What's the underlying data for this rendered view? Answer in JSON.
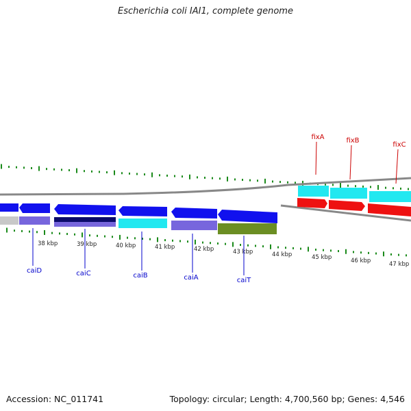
{
  "header": {
    "title": "Escherichia coli IAI1, complete genome"
  },
  "footer": {
    "accession": "Accession: NC_011741",
    "summary": "Topology: circular; Length: 4,700,560 bp; Genes: 4,546"
  },
  "colors": {
    "gene_label_blue": "#0000cc",
    "gene_label_red": "#cc0000",
    "tick_green": "#1a8a1a",
    "gene_blue": "#1111ee",
    "gene_cyan": "#22e8f0",
    "gene_red": "#ee1111",
    "gene_purple": "#7766dd",
    "gene_olive": "#6b8e23",
    "gene_navy": "#0a0a6a"
  },
  "axis": {
    "kbp_labels": [
      "38 kbp",
      "39 kbp",
      "40 kbp",
      "41 kbp",
      "42 kbp",
      "43 kbp",
      "44 kbp",
      "45 kbp",
      "46 kbp",
      "47 kbp"
    ]
  },
  "genes": {
    "bottom": [
      "caiD",
      "caiC",
      "caiB",
      "caiA",
      "caiT"
    ],
    "top": [
      "fixA",
      "fixB",
      "fixC"
    ]
  }
}
